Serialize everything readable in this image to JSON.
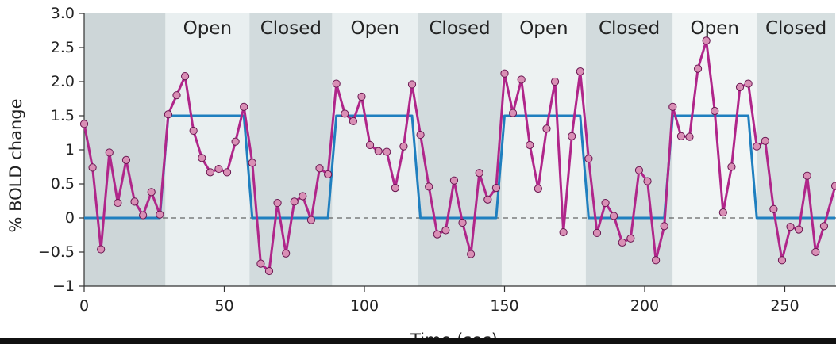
{
  "chart_data": {
    "type": "line",
    "title": "",
    "xlabel": "Time (sec)",
    "ylabel": "% BOLD change",
    "xlim": [
      0,
      268
    ],
    "ylim": [
      -1,
      3.0
    ],
    "xticks": [
      0,
      50,
      100,
      150,
      200,
      250
    ],
    "xtick_labels": [
      "0",
      "50",
      "100",
      "150",
      "200",
      "250"
    ],
    "yticks": [
      3.0,
      2.5,
      2.0,
      1.5,
      1,
      0.5,
      0,
      -0.5,
      -1
    ],
    "ytick_labels": [
      "3.0",
      "2.5",
      "2.0",
      "1.5",
      "1",
      "0.5",
      "0",
      "−0.5",
      "−1"
    ],
    "blocks": [
      {
        "start": 0,
        "end": 29,
        "label": "",
        "shade": "#cdd6d8"
      },
      {
        "start": 29,
        "end": 59,
        "label": "Open",
        "shade": "#e9eff0"
      },
      {
        "start": 59,
        "end": 88.5,
        "label": "Closed",
        "shade": "#d2dbdd"
      },
      {
        "start": 88.5,
        "end": 119,
        "label": "Open",
        "shade": "#e9eff0"
      },
      {
        "start": 119,
        "end": 149,
        "label": "Closed",
        "shade": "#d2dbdd"
      },
      {
        "start": 149,
        "end": 179,
        "label": "Open",
        "shade": "#edf2f2"
      },
      {
        "start": 179,
        "end": 210,
        "label": "Closed",
        "shade": "#d2dbdd"
      },
      {
        "start": 210,
        "end": 240,
        "label": "Open",
        "shade": "#f1f5f5"
      },
      {
        "start": 240,
        "end": 268,
        "label": "Closed",
        "shade": "#d6dfe0"
      }
    ],
    "baseline": 0,
    "series": [
      {
        "role": "model",
        "color": "#1f7fbf",
        "x": [
          0,
          27,
          30,
          57,
          60,
          87,
          90,
          117,
          120,
          147,
          150,
          177,
          180,
          207,
          210,
          237,
          240,
          268
        ],
        "y": [
          0,
          0,
          1.5,
          1.5,
          0,
          0,
          1.5,
          1.5,
          0,
          0,
          1.5,
          1.5,
          0,
          0,
          1.5,
          1.5,
          0,
          0
        ]
      },
      {
        "role": "measured",
        "color": "#b0268a",
        "marker_color": "#d98fb5",
        "x": [
          0,
          3,
          6,
          9,
          12,
          15,
          18,
          21,
          24,
          27,
          30,
          33,
          36,
          39,
          42,
          45,
          48,
          51,
          54,
          57,
          60,
          63,
          66,
          69,
          72,
          75,
          78,
          81,
          84,
          87,
          90,
          93,
          96,
          99,
          102,
          105,
          108,
          111,
          114,
          117,
          120,
          123,
          126,
          129,
          132,
          135,
          138,
          141,
          144,
          147,
          150,
          153,
          156,
          159,
          162,
          165,
          168,
          171,
          174,
          177,
          180,
          183,
          186,
          189,
          192,
          195,
          198,
          201,
          204,
          207,
          210,
          213,
          216,
          219,
          222,
          225,
          228,
          231,
          234,
          237,
          240,
          243,
          246,
          249,
          252,
          255,
          258,
          261,
          264,
          268
        ],
        "y": [
          1.38,
          0.74,
          -0.46,
          0.96,
          0.22,
          0.85,
          0.24,
          0.04,
          0.38,
          0.05,
          1.52,
          1.8,
          2.08,
          1.28,
          0.88,
          0.67,
          0.72,
          0.67,
          1.12,
          1.63,
          0.81,
          -0.67,
          -0.78,
          0.22,
          -0.52,
          0.24,
          0.32,
          -0.03,
          0.73,
          0.64,
          1.97,
          1.53,
          1.42,
          1.78,
          1.07,
          0.98,
          0.97,
          0.44,
          1.05,
          1.96,
          1.22,
          0.46,
          -0.24,
          -0.18,
          0.55,
          -0.07,
          -0.53,
          0.66,
          0.27,
          0.44,
          2.12,
          1.54,
          2.03,
          1.07,
          0.43,
          1.31,
          2.0,
          -0.21,
          1.2,
          2.15,
          0.87,
          -0.22,
          0.22,
          0.03,
          -0.36,
          -0.3,
          0.7,
          0.54,
          -0.62,
          -0.12,
          1.63,
          1.2,
          1.19,
          2.19,
          2.6,
          1.57,
          0.08,
          0.75,
          1.92,
          1.97,
          1.05,
          1.13,
          0.13,
          -0.62,
          -0.13,
          -0.17,
          0.62,
          -0.5,
          -0.12,
          0.47
        ]
      }
    ]
  }
}
